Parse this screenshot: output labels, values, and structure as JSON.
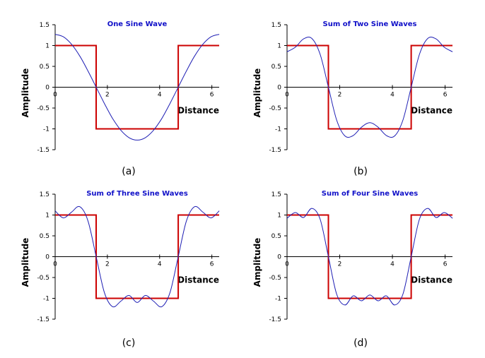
{
  "colors": {
    "square_wave": "#cc0000",
    "sine_sum": "#1f1fb4",
    "axis": "#000000",
    "title": "#1010c8"
  },
  "chart_data": [
    {
      "panel": "(a)",
      "type": "line",
      "title": "One Sine Wave",
      "xlabel": "Distance",
      "ylabel": "Amplitude",
      "xlim": [
        0,
        6.28
      ],
      "ylim": [
        -1.5,
        1.5
      ],
      "xticks": [
        "0",
        "2",
        "4",
        "6"
      ],
      "yticks": [
        "1.5",
        "1",
        "0.5",
        "0",
        "-0.5",
        "-1",
        "-1.5"
      ],
      "grid": false,
      "series": [
        {
          "x": [
            0,
            1.571,
            1.571,
            4.712,
            4.712,
            6.28
          ],
          "y": [
            1,
            1,
            -1,
            -1,
            1,
            1
          ]
        },
        {
          "x": [
            0,
            0.314,
            0.628,
            0.942,
            1.257,
            1.571,
            1.885,
            2.199,
            2.513,
            2.827,
            3.142,
            3.456,
            3.77,
            4.084,
            4.398,
            4.712,
            5.027,
            5.341,
            5.655,
            5.969,
            6.283
          ],
          "y": [
            1.27,
            1.21,
            1.03,
            0.75,
            0.39,
            0,
            -0.39,
            -0.75,
            -1.03,
            -1.21,
            -1.27,
            -1.21,
            -1.03,
            -0.75,
            -0.39,
            0,
            0.39,
            0.75,
            1.03,
            1.21,
            1.27
          ]
        }
      ]
    },
    {
      "panel": "(b)",
      "type": "line",
      "title": "Sum of Two Sine Waves",
      "xlabel": "Distance",
      "ylabel": "Amplitude",
      "xlim": [
        0,
        6.28
      ],
      "ylim": [
        -1.5,
        1.5
      ],
      "xticks": [
        "0",
        "2",
        "4",
        "6"
      ],
      "yticks": [
        "1.5",
        "1",
        "0.5",
        "0",
        "-0.5",
        "-1",
        "-1.5"
      ],
      "grid": false,
      "series": [
        {
          "x": [
            0,
            1.571,
            1.571,
            4.712,
            4.712,
            6.28
          ],
          "y": [
            1,
            1,
            -1,
            -1,
            1,
            1
          ]
        },
        {
          "x": [
            0,
            0.314,
            0.628,
            0.942,
            1.257,
            1.571,
            1.885,
            2.199,
            2.513,
            2.827,
            3.142,
            3.456,
            3.77,
            4.084,
            4.398,
            4.712,
            5.027,
            5.341,
            5.655,
            5.969,
            6.283
          ],
          "y": [
            0.85,
            0.96,
            1.16,
            1.17,
            0.79,
            0,
            -0.79,
            -1.17,
            -1.16,
            -0.96,
            -0.85,
            -0.96,
            -1.16,
            -1.17,
            -0.79,
            0,
            0.79,
            1.17,
            1.16,
            0.96,
            0.85
          ]
        }
      ]
    },
    {
      "panel": "(c)",
      "type": "line",
      "title": "Sum of Three Sine Waves",
      "xlabel": "Distance",
      "ylabel": "Amplitude",
      "xlim": [
        0,
        6.28
      ],
      "ylim": [
        -1.5,
        1.5
      ],
      "xticks": [
        "0",
        "2",
        "4",
        "6"
      ],
      "yticks": [
        "1.5",
        "1",
        "0.5",
        "0",
        "-0.5",
        "-1",
        "-1.5"
      ],
      "grid": false,
      "series": [
        {
          "x": [
            0,
            1.571,
            1.571,
            4.712,
            4.712,
            6.28
          ],
          "y": [
            1,
            1,
            -1,
            -1,
            1,
            1
          ]
        },
        {
          "x": [
            0,
            0.314,
            0.628,
            0.942,
            1.257,
            1.571,
            1.885,
            2.199,
            2.513,
            2.827,
            3.142,
            3.456,
            3.77,
            4.084,
            4.398,
            4.712,
            5.027,
            5.341,
            5.655,
            5.969,
            6.283
          ],
          "y": [
            1.1,
            0.93,
            1.07,
            1.2,
            0.86,
            0,
            -0.86,
            -1.2,
            -1.07,
            -0.93,
            -1.1,
            -0.93,
            -1.07,
            -1.2,
            -0.86,
            0,
            0.86,
            1.2,
            1.07,
            0.93,
            1.1
          ]
        }
      ]
    },
    {
      "panel": "(d)",
      "type": "line",
      "title": "Sum of Four Sine Waves",
      "xlabel": "Distance",
      "ylabel": "Amplitude",
      "xlim": [
        0,
        6.28
      ],
      "ylim": [
        -1.5,
        1.5
      ],
      "xticks": [
        "0",
        "2",
        "4",
        "6"
      ],
      "yticks": [
        "1.5",
        "1",
        "0.5",
        "0",
        "-0.5",
        "-1",
        "-1.5"
      ],
      "grid": false,
      "series": [
        {
          "x": [
            0,
            1.571,
            1.571,
            4.712,
            4.712,
            6.28
          ],
          "y": [
            1,
            1,
            -1,
            -1,
            1,
            1
          ]
        },
        {
          "x": [
            0,
            0.314,
            0.628,
            0.942,
            1.257,
            1.571,
            1.885,
            2.199,
            2.513,
            2.827,
            3.142,
            3.456,
            3.77,
            4.084,
            4.398,
            4.712,
            5.027,
            5.341,
            5.655,
            5.969,
            6.283
          ],
          "y": [
            0.92,
            1.06,
            0.94,
            1.16,
            0.9,
            0,
            -0.9,
            -1.16,
            -0.94,
            -1.06,
            -0.92,
            -1.06,
            -0.94,
            -1.16,
            -0.9,
            0,
            0.9,
            1.16,
            0.94,
            1.06,
            0.92
          ]
        }
      ]
    }
  ]
}
